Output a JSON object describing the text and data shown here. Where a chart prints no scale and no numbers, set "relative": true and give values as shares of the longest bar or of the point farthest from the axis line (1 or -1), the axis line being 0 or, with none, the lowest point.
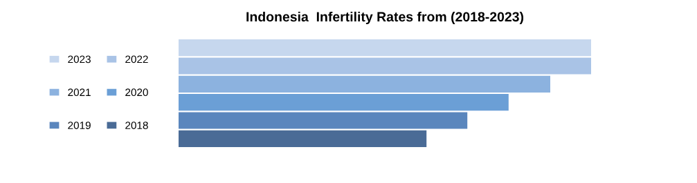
{
  "chart_data": {
    "type": "bar",
    "title": "Indonesia  Infertility Rates from (2018-2023)",
    "orientation": "horizontal",
    "relative": true,
    "categories": [
      null
    ],
    "legend": "left",
    "series": [
      {
        "name": "2023",
        "color": "#c6d7ee",
        "values": [
          1.0
        ]
      },
      {
        "name": "2022",
        "color": "#a9c3e6",
        "values": [
          1.0
        ]
      },
      {
        "name": "2021",
        "color": "#8cb2df",
        "values": [
          0.901
        ]
      },
      {
        "name": "2020",
        "color": "#6b9fd6",
        "values": [
          0.8
        ]
      },
      {
        "name": "2019",
        "color": "#5a86bd",
        "values": [
          0.7
        ]
      },
      {
        "name": "2018",
        "color": "#4a6b96",
        "values": [
          0.601
        ]
      }
    ]
  }
}
